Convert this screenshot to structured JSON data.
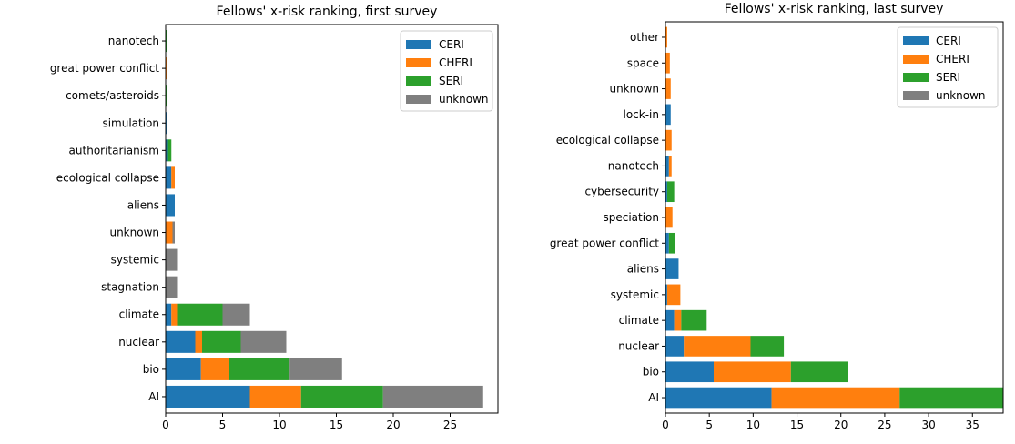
{
  "colors": {
    "CERI": "#1f77b4",
    "CHERI": "#ff7f0e",
    "SERI": "#2ca02c",
    "unknown": "#7f7f7f"
  },
  "chart_data": [
    {
      "type": "bar",
      "orientation": "horizontal",
      "stacked": true,
      "title": "Fellows' x-risk ranking, first survey",
      "xlabel": "",
      "ylabel": "",
      "xlim": [
        0,
        29.2
      ],
      "xticks": [
        0,
        5,
        10,
        15,
        20,
        25
      ],
      "legend": {
        "position": "top-right",
        "entries": [
          "CERI",
          "CHERI",
          "SERI",
          "unknown"
        ]
      },
      "categories": [
        "AI",
        "bio",
        "nuclear",
        "climate",
        "stagnation",
        "systemic",
        "unknown",
        "aliens",
        "ecological collapse",
        "authoritarianism",
        "simulation",
        "comets/asteroids",
        "great power conflict",
        "nanotech"
      ],
      "series": [
        {
          "name": "CERI",
          "values": [
            7.4,
            3.1,
            2.6,
            0.5,
            0,
            0,
            0,
            0.8,
            0.5,
            0.2,
            0.15,
            0,
            0,
            0
          ]
        },
        {
          "name": "CHERI",
          "values": [
            4.5,
            2.5,
            0.6,
            0.5,
            0,
            0,
            0.6,
            0,
            0.3,
            0,
            0,
            0,
            0.15,
            0
          ]
        },
        {
          "name": "SERI",
          "values": [
            7.2,
            5.3,
            3.4,
            4.0,
            0,
            0,
            0,
            0,
            0,
            0.3,
            0,
            0.15,
            0,
            0.15
          ]
        },
        {
          "name": "unknown",
          "values": [
            8.8,
            4.6,
            4.0,
            2.4,
            1.0,
            1.0,
            0.2,
            0,
            0,
            0,
            0,
            0,
            0,
            0
          ]
        }
      ]
    },
    {
      "type": "bar",
      "orientation": "horizontal",
      "stacked": true,
      "title": "Fellows' x-risk ranking, last survey",
      "xlabel": "",
      "ylabel": "",
      "xlim": [
        0,
        38.5
      ],
      "xticks": [
        0,
        5,
        10,
        15,
        20,
        25,
        30,
        35
      ],
      "legend": {
        "position": "top-right",
        "entries": [
          "CERI",
          "CHERI",
          "SERI",
          "unknown"
        ]
      },
      "categories": [
        "AI",
        "bio",
        "nuclear",
        "climate",
        "systemic",
        "aliens",
        "great power conflict",
        "speciation",
        "cybersecurity",
        "nanotech",
        "ecological collapse",
        "lock-in",
        "unknown",
        "space",
        "other"
      ],
      "series": [
        {
          "name": "CERI",
          "values": [
            12.1,
            5.5,
            2.1,
            1.0,
            0.2,
            1.5,
            0.4,
            0,
            0.2,
            0.4,
            0,
            0.6,
            0,
            0,
            0
          ]
        },
        {
          "name": "CHERI",
          "values": [
            14.6,
            8.8,
            7.6,
            0.8,
            1.5,
            0,
            0,
            0.8,
            0,
            0.3,
            0.7,
            0,
            0.6,
            0.5,
            0.2
          ]
        },
        {
          "name": "SERI",
          "values": [
            11.8,
            6.5,
            3.8,
            2.9,
            0,
            0,
            0.7,
            0,
            0.8,
            0,
            0,
            0,
            0,
            0,
            0
          ]
        },
        {
          "name": "unknown",
          "values": [
            0,
            0,
            0,
            0,
            0,
            0,
            0,
            0,
            0,
            0,
            0,
            0,
            0,
            0,
            0
          ]
        }
      ]
    }
  ]
}
